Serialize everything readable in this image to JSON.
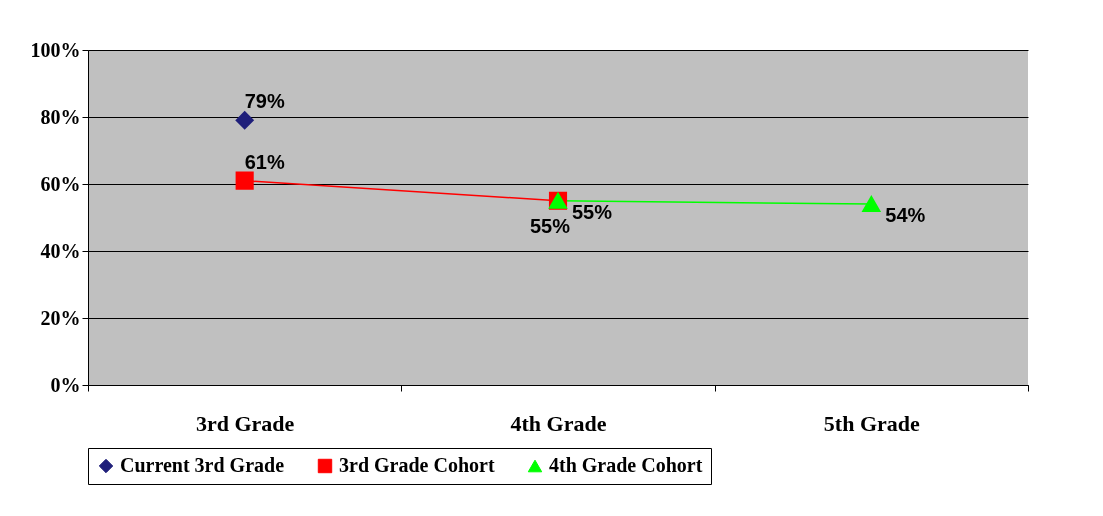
{
  "chart_data": {
    "type": "line",
    "categories": [
      "3rd Grade",
      "4th Grade",
      "5th Grade"
    ],
    "series": [
      {
        "name": "Current 3rd Grade",
        "color": "#1f1f7a",
        "marker": "diamond",
        "values": [
          79,
          null,
          null
        ],
        "value_labels": [
          "79%",
          null,
          null
        ]
      },
      {
        "name": "3rd Grade Cohort",
        "color": "#ff0000",
        "marker": "square",
        "values": [
          61,
          55,
          null
        ],
        "value_labels": [
          "61%",
          "55%",
          null
        ]
      },
      {
        "name": "4th Grade Cohort",
        "color": "#00ff00",
        "marker": "triangle",
        "values": [
          null,
          55,
          54
        ],
        "value_labels": [
          null,
          "55%",
          "54%"
        ]
      }
    ],
    "ylim": [
      0,
      100
    ],
    "yticks": [
      {
        "value": 0,
        "label": "0%"
      },
      {
        "value": 20,
        "label": "20%"
      },
      {
        "value": 40,
        "label": "40%"
      },
      {
        "value": 60,
        "label": "60%"
      },
      {
        "value": 80,
        "label": "80%"
      },
      {
        "value": 100,
        "label": "100%"
      }
    ],
    "grid": "y",
    "legend": "bottom"
  }
}
